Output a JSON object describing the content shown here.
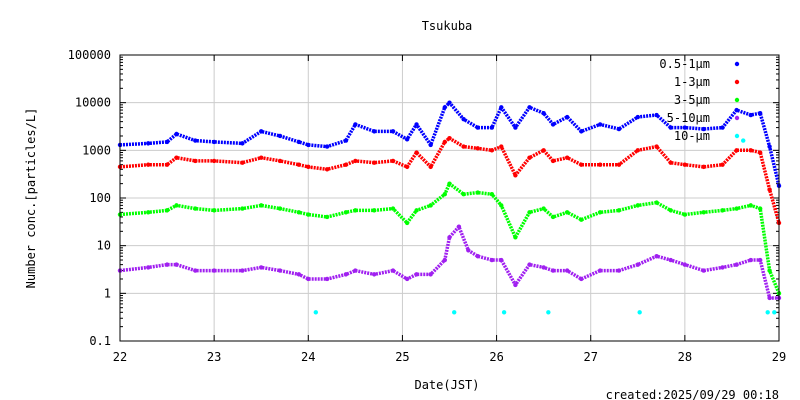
{
  "chart_data": {
    "type": "scatter",
    "title": "Tsukuba",
    "xlabel": "Date(JST)",
    "ylabel": "Number conc.[particles/L]",
    "yscale": "log",
    "xlim": [
      22,
      29
    ],
    "ylim": [
      0.1,
      100000
    ],
    "x_ticks": [
      22,
      23,
      24,
      25,
      26,
      27,
      28,
      29
    ],
    "x_tick_labels": [
      "22",
      "23",
      "24",
      "25",
      "26",
      "27",
      "28",
      "29"
    ],
    "y_ticks": [
      0.1,
      1,
      10,
      100,
      1000,
      10000,
      100000
    ],
    "y_tick_labels": [
      "0.1",
      "1",
      "10",
      "100",
      "1000",
      "10000",
      "100000"
    ],
    "legend_position": "top-right",
    "created": "created:2025/09/29 00:18",
    "series": [
      {
        "name": "0.5-1μm",
        "color": "#0000ff",
        "x": [
          22.0,
          22.3,
          22.5,
          22.6,
          22.8,
          23.0,
          23.3,
          23.5,
          23.7,
          23.9,
          24.0,
          24.2,
          24.4,
          24.5,
          24.7,
          24.9,
          25.05,
          25.15,
          25.3,
          25.45,
          25.5,
          25.65,
          25.8,
          25.95,
          26.05,
          26.2,
          26.35,
          26.5,
          26.6,
          26.75,
          26.9,
          27.1,
          27.3,
          27.5,
          27.7,
          27.85,
          28.0,
          28.2,
          28.4,
          28.55,
          28.7,
          28.8,
          28.9,
          29.0
        ],
        "y": [
          1300,
          1400,
          1500,
          2200,
          1600,
          1500,
          1400,
          2500,
          2000,
          1500,
          1300,
          1200,
          1600,
          3500,
          2500,
          2500,
          1700,
          3500,
          1300,
          8000,
          10000,
          4500,
          3000,
          3000,
          8000,
          3000,
          8000,
          6000,
          3500,
          5000,
          2500,
          3500,
          2800,
          5000,
          5500,
          3000,
          3000,
          2800,
          3000,
          7000,
          5500,
          6000,
          1200,
          180
        ]
      },
      {
        "name": "1-3μm",
        "color": "#ff0000",
        "x": [
          22.0,
          22.3,
          22.5,
          22.6,
          22.8,
          23.0,
          23.3,
          23.5,
          23.7,
          23.9,
          24.0,
          24.2,
          24.4,
          24.5,
          24.7,
          24.9,
          25.05,
          25.15,
          25.3,
          25.45,
          25.5,
          25.65,
          25.8,
          25.95,
          26.05,
          26.2,
          26.35,
          26.5,
          26.6,
          26.75,
          26.9,
          27.1,
          27.3,
          27.5,
          27.7,
          27.85,
          28.0,
          28.2,
          28.4,
          28.55,
          28.7,
          28.8,
          28.9,
          29.0
        ],
        "y": [
          450,
          500,
          500,
          700,
          600,
          600,
          550,
          700,
          600,
          500,
          450,
          400,
          500,
          600,
          550,
          600,
          450,
          900,
          450,
          1500,
          1800,
          1200,
          1100,
          1000,
          1200,
          300,
          700,
          1000,
          600,
          700,
          500,
          500,
          500,
          1000,
          1200,
          550,
          500,
          450,
          500,
          1000,
          1000,
          900,
          150,
          30
        ]
      },
      {
        "name": "3-5μm",
        "color": "#00ff00",
        "x": [
          22.0,
          22.3,
          22.5,
          22.6,
          22.8,
          23.0,
          23.3,
          23.5,
          23.7,
          23.9,
          24.0,
          24.2,
          24.4,
          24.5,
          24.7,
          24.9,
          25.05,
          25.15,
          25.3,
          25.45,
          25.5,
          25.65,
          25.8,
          25.95,
          26.05,
          26.2,
          26.35,
          26.5,
          26.6,
          26.75,
          26.9,
          27.1,
          27.3,
          27.5,
          27.7,
          27.85,
          28.0,
          28.2,
          28.4,
          28.55,
          28.7,
          28.8,
          28.9,
          29.0
        ],
        "y": [
          45,
          50,
          55,
          70,
          60,
          55,
          60,
          70,
          60,
          50,
          45,
          40,
          50,
          55,
          55,
          60,
          30,
          55,
          70,
          120,
          200,
          120,
          130,
          120,
          70,
          15,
          50,
          60,
          40,
          50,
          35,
          50,
          55,
          70,
          80,
          55,
          45,
          50,
          55,
          60,
          70,
          60,
          3,
          1
        ]
      },
      {
        "name": "5-10μm",
        "color": "#a020f0",
        "x": [
          22.0,
          22.3,
          22.5,
          22.6,
          22.8,
          23.0,
          23.3,
          23.5,
          23.7,
          23.9,
          24.0,
          24.2,
          24.4,
          24.5,
          24.7,
          24.9,
          25.05,
          25.15,
          25.3,
          25.45,
          25.5,
          25.6,
          25.7,
          25.8,
          25.95,
          26.05,
          26.2,
          26.35,
          26.5,
          26.6,
          26.75,
          26.9,
          27.1,
          27.3,
          27.5,
          27.7,
          27.85,
          28.0,
          28.2,
          28.4,
          28.55,
          28.7,
          28.8,
          28.9,
          29.0
        ],
        "y": [
          3,
          3.5,
          4,
          4,
          3,
          3,
          3,
          3.5,
          3,
          2.5,
          2,
          2,
          2.5,
          3,
          2.5,
          3,
          2,
          2.5,
          2.5,
          5,
          15,
          25,
          8,
          6,
          5,
          5,
          1.5,
          4,
          3.5,
          3,
          3,
          2,
          3,
          3,
          4,
          6,
          5,
          4,
          3,
          3.5,
          4,
          5,
          5,
          0.8,
          0.8
        ]
      },
      {
        "name": "10-μm",
        "color": "#00ffff",
        "x": [
          24.08,
          25.55,
          26.08,
          26.55,
          27.52,
          28.62,
          28.88,
          28.95
        ],
        "y": [
          0.4,
          0.4,
          0.4,
          0.4,
          0.4,
          1600,
          0.4,
          0.4
        ]
      }
    ]
  }
}
